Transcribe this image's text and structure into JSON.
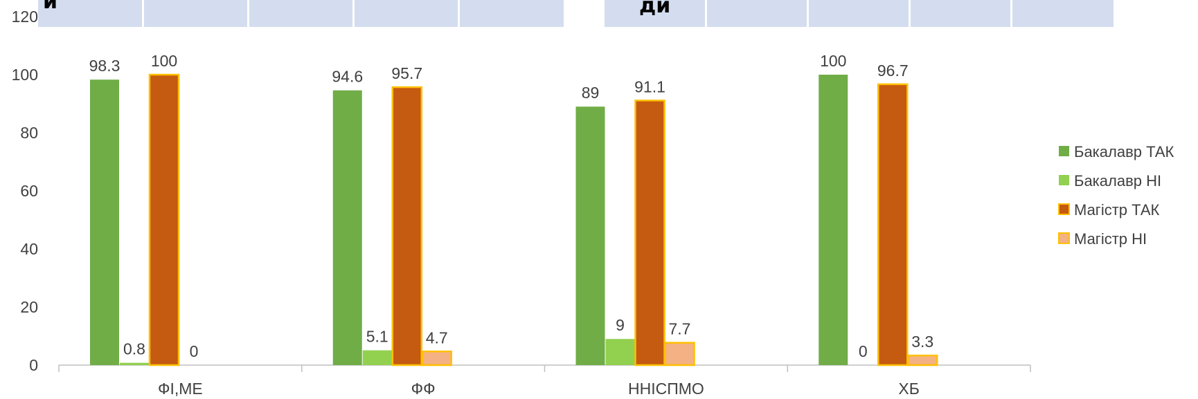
{
  "overlay": {
    "left_text": "и",
    "right_text": "ди"
  },
  "colors": {
    "bachelor_yes": "#70ad47",
    "bachelor_no": "#92d050",
    "master_yes": "#c55a11",
    "master_no": "#f4b183",
    "master_border": "#ffc000",
    "axis": "#bfbfbf",
    "text": "#404040"
  },
  "chart_data": {
    "type": "bar",
    "categories": [
      "ФІ,МЕ",
      "ФФ",
      "ННІСПМО",
      "ХБ"
    ],
    "series": [
      {
        "name": "Бакалавр ТАК",
        "values": [
          98.3,
          94.6,
          89,
          100
        ],
        "color": "#70ad47"
      },
      {
        "name": "Бакалавр НІ",
        "values": [
          0.8,
          5.1,
          9,
          null
        ],
        "color": "#92d050"
      },
      {
        "name": "Магістр ТАК",
        "values": [
          100,
          95.7,
          91.1,
          96.7
        ],
        "color": "#c55a11"
      },
      {
        "name": "Магістр НІ",
        "values": [
          0,
          4.7,
          7.7,
          3.3
        ],
        "color": "#f4b183"
      }
    ],
    "data_labels": [
      [
        "98.3",
        "94.6",
        "89",
        "100"
      ],
      [
        "0.8",
        "5.1",
        "9",
        "0"
      ],
      [
        "100",
        "95.7",
        "91.1",
        "96.7"
      ],
      [
        "0",
        "4.7",
        "7.7",
        "3.3"
      ]
    ],
    "yticks": [
      "0",
      "20",
      "40",
      "60",
      "80",
      "100",
      "120"
    ],
    "ylim": [
      0,
      120
    ],
    "xlabel": "",
    "ylabel": "",
    "grid": false,
    "legend_position": "right"
  }
}
